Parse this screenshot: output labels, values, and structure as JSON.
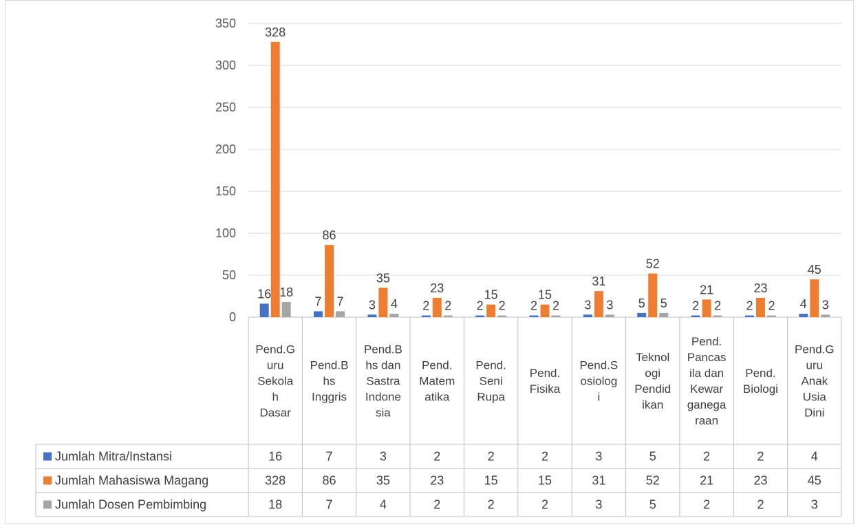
{
  "chart_data": {
    "type": "bar",
    "title": "",
    "xlabel": "",
    "ylabel": "",
    "ylim": [
      0,
      350
    ],
    "yticks": [
      0,
      50,
      100,
      150,
      200,
      250,
      300,
      350
    ],
    "grid": true,
    "legend": "data-table",
    "categories": [
      [
        "Pend.G",
        "uru",
        "Sekola",
        "h",
        "Dasar"
      ],
      [
        "Pend.B",
        "hs",
        "Inggris"
      ],
      [
        "Pend.B",
        "hs dan",
        "Sastra",
        "Indone",
        "sia"
      ],
      [
        "Pend.",
        "Matem",
        "atika"
      ],
      [
        "Pend.",
        "Seni",
        "Rupa"
      ],
      [
        "Pend.",
        "Fisika"
      ],
      [
        "Pend.S",
        "osiolog",
        "i"
      ],
      [
        "Teknol",
        "ogi",
        "Pendid",
        "ikan"
      ],
      [
        "Pend.",
        "Pancas",
        "ila dan",
        "Kewar",
        "ganega",
        "raan"
      ],
      [
        "Pend.",
        "Biologi"
      ],
      [
        "Pend.G",
        "uru",
        "Anak",
        "Usia",
        "Dini"
      ]
    ],
    "series": [
      {
        "name": "Jumlah Mitra/Instansi",
        "color": "#4472c4",
        "values": [
          16,
          7,
          3,
          2,
          2,
          2,
          3,
          5,
          2,
          2,
          4
        ]
      },
      {
        "name": "Jumlah Mahasiswa Magang",
        "color": "#ed7d31",
        "values": [
          328,
          86,
          35,
          23,
          15,
          15,
          31,
          52,
          21,
          23,
          45
        ]
      },
      {
        "name": "Jumlah Dosen Pembimbing",
        "color": "#a5a5a5",
        "values": [
          18,
          7,
          4,
          2,
          2,
          2,
          3,
          5,
          2,
          2,
          3
        ]
      }
    ]
  }
}
